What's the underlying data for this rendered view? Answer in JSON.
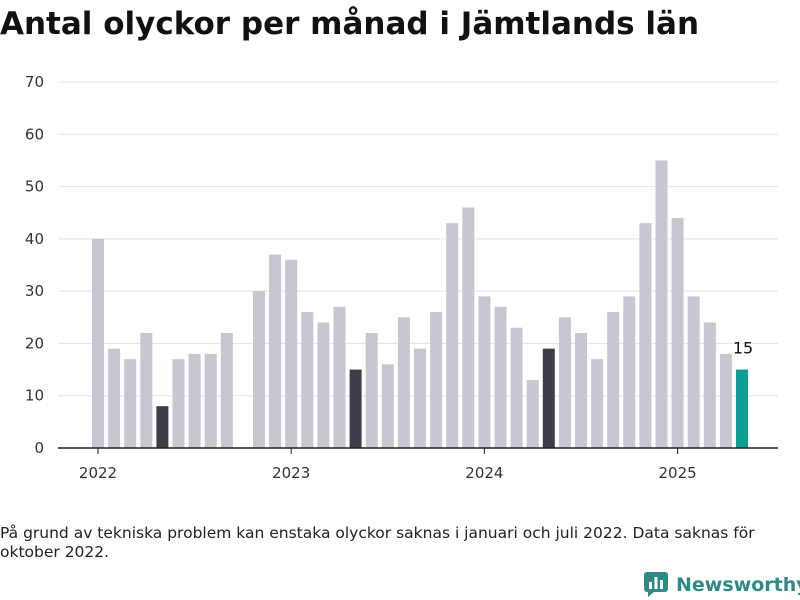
{
  "title": "Antal olyckor per månad i Jämtlands län",
  "footnote": "På grund av tekniska problem kan enstaka olyckor saknas i januari och juli 2022. Data saknas för oktober 2022.",
  "brand": {
    "name": "Newsworthy",
    "icon": "bar-chart-logo-icon",
    "color": "#2e8a84"
  },
  "chart_data": {
    "type": "bar",
    "title": "Antal olyckor per månad i Jämtlands län",
    "xlabel": "",
    "ylabel": "",
    "ylim": [
      0,
      70
    ],
    "y_ticks": [
      0,
      10,
      20,
      30,
      40,
      50,
      60,
      70
    ],
    "x_ticks": [
      "2022",
      "2023",
      "2024",
      "2025"
    ],
    "grid": true,
    "legend": "none",
    "colors": {
      "default": "#c8c7d1",
      "highlight": "#3e3e48",
      "latest": "#0e9e95"
    },
    "categories": [
      "2022-01",
      "2022-02",
      "2022-03",
      "2022-04",
      "2022-05",
      "2022-06",
      "2022-07",
      "2022-08",
      "2022-09",
      "2022-10",
      "2022-11",
      "2022-12",
      "2023-01",
      "2023-02",
      "2023-03",
      "2023-04",
      "2023-05",
      "2023-06",
      "2023-07",
      "2023-08",
      "2023-09",
      "2023-10",
      "2023-11",
      "2023-12",
      "2024-01",
      "2024-02",
      "2024-03",
      "2024-04",
      "2024-05",
      "2024-06",
      "2024-07",
      "2024-08",
      "2024-09",
      "2024-10",
      "2024-11",
      "2024-12",
      "2025-01",
      "2025-02",
      "2025-03",
      "2025-04",
      "2025-05"
    ],
    "values": [
      40,
      19,
      17,
      22,
      8,
      17,
      18,
      18,
      22,
      null,
      30,
      37,
      36,
      26,
      24,
      27,
      15,
      22,
      16,
      25,
      19,
      26,
      43,
      46,
      29,
      27,
      23,
      13,
      19,
      25,
      22,
      17,
      26,
      29,
      43,
      55,
      44,
      29,
      24,
      18,
      15
    ],
    "highlighted": [
      "2022-05",
      "2023-05",
      "2024-05"
    ],
    "latest": "2025-05",
    "data_labels": [
      {
        "category": "2025-05",
        "text": "15"
      }
    ]
  }
}
